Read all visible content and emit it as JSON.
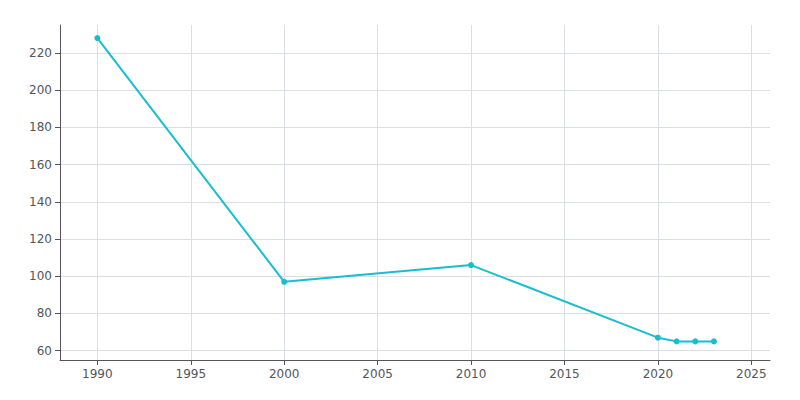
{
  "chart_data": {
    "type": "line",
    "x": [
      1990,
      2000,
      2010,
      2020,
      2021,
      2022,
      2023
    ],
    "values": [
      228,
      97,
      106,
      67,
      65,
      65,
      65
    ],
    "color": "#17becf",
    "marker": "circle",
    "xlim": [
      1988,
      2026
    ],
    "ylim": [
      55,
      235
    ],
    "xticks": [
      1990,
      1995,
      2000,
      2005,
      2010,
      2015,
      2020,
      2025
    ],
    "yticks": [
      60,
      80,
      100,
      120,
      140,
      160,
      180,
      200,
      220
    ],
    "grid": true
  }
}
